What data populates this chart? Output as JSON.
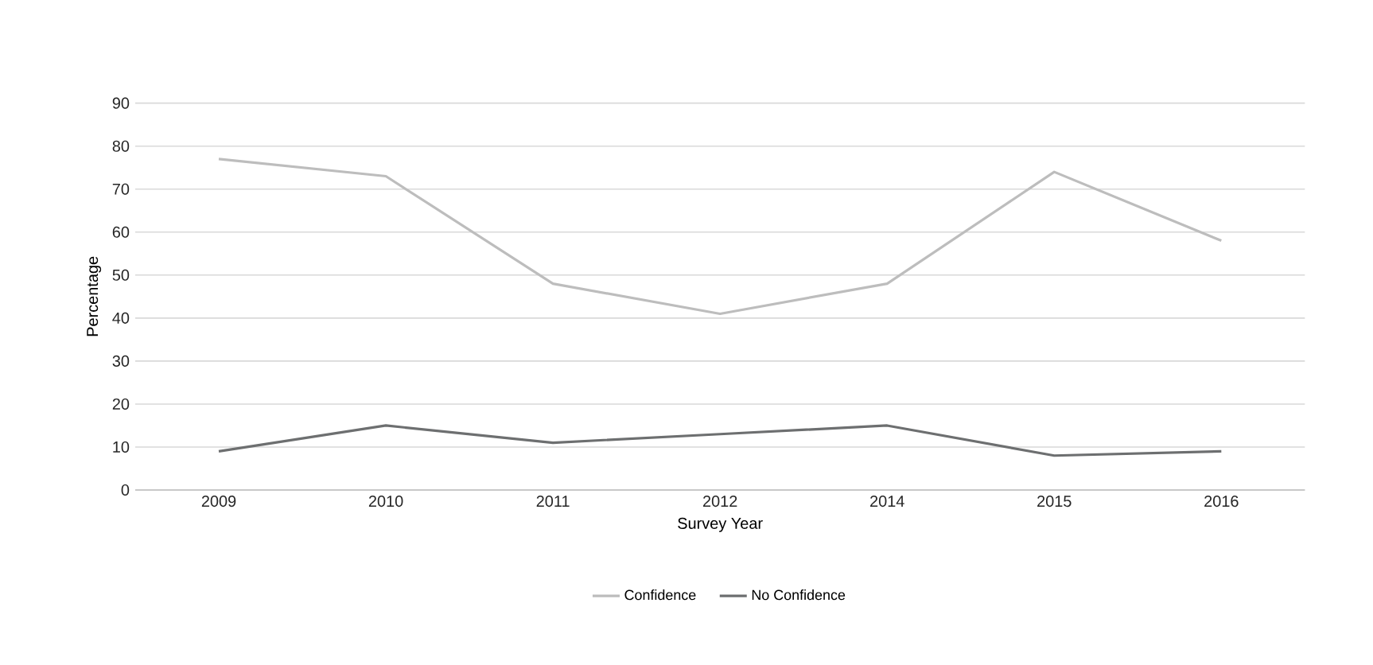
{
  "chart_data": {
    "type": "line",
    "xlabel": "Survey Year",
    "ylabel": "Percentage",
    "categories": [
      "2009",
      "2010",
      "2011",
      "2012",
      "2014",
      "2015",
      "2016"
    ],
    "series": [
      {
        "name": "Confidence",
        "color": "#bdbdbd",
        "values": [
          77,
          73,
          48,
          41,
          48,
          74,
          58
        ]
      },
      {
        "name": "No Confidence",
        "color": "#6d6f70",
        "values": [
          9,
          15,
          11,
          13,
          15,
          8,
          9
        ]
      }
    ],
    "ylim": [
      0,
      90
    ],
    "yticks": [
      0,
      10,
      20,
      30,
      40,
      50,
      60,
      70,
      80,
      90
    ],
    "grid": "y",
    "legend": "bottom",
    "marker": "none",
    "line_style": "solid"
  }
}
